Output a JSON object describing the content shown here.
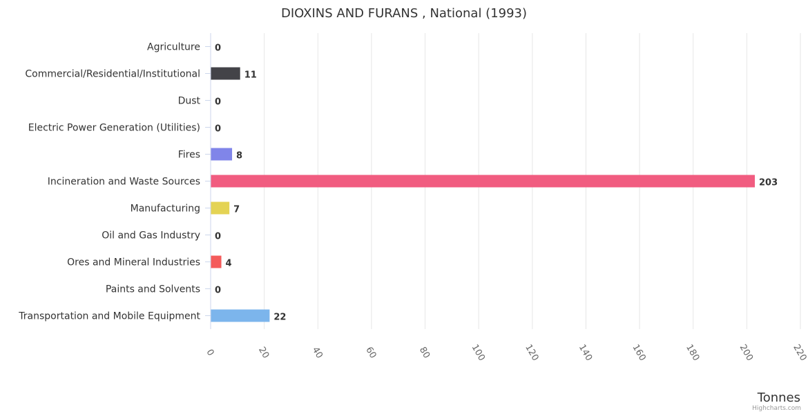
{
  "chart_data": {
    "type": "bar",
    "orientation": "horizontal",
    "title": "DIOXINS AND FURANS , National (1993)",
    "categories": [
      "Agriculture",
      "Commercial/Residential/Institutional",
      "Dust",
      "Electric Power Generation (Utilities)",
      "Fires",
      "Incineration and Waste Sources",
      "Manufacturing",
      "Oil and Gas Industry",
      "Ores and Mineral Industries",
      "Paints and Solvents",
      "Transportation and Mobile Equipment"
    ],
    "values": [
      0,
      11,
      0,
      0,
      8,
      203,
      7,
      0,
      4,
      0,
      22
    ],
    "data_labels": [
      "0",
      "11",
      "0",
      "0",
      "8",
      "203",
      "7",
      "0",
      "4",
      "0",
      "22"
    ],
    "colors": [
      "#7cb5ec",
      "#434348",
      "#90ed7d",
      "#f7a35c",
      "#8085e9",
      "#f15c80",
      "#e4d354",
      "#2b908f",
      "#f45b5b",
      "#91e8e1",
      "#7cb5ec"
    ],
    "xlabel": "Tonnes",
    "xlim": [
      0,
      220
    ],
    "ticks": [
      0,
      20,
      40,
      60,
      80,
      100,
      120,
      140,
      160,
      180,
      200,
      220
    ],
    "tick_labels": [
      "0",
      "20",
      "40",
      "60",
      "80",
      "100",
      "120",
      "140",
      "160",
      "180",
      "200",
      "220"
    ],
    "grid": true,
    "legend": "none"
  },
  "credits": "Highcharts.com"
}
